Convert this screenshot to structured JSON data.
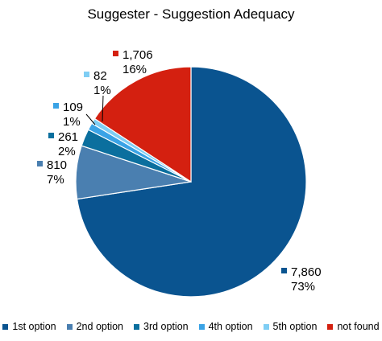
{
  "chart_data": {
    "type": "pie",
    "title": "Suggester - Suggestion Adequacy",
    "slices": [
      {
        "name": "1st option",
        "value": 7860,
        "value_label": "7,860",
        "percent_label": "73%",
        "color": "#0a5490"
      },
      {
        "name": "2nd option",
        "value": 810,
        "value_label": "810",
        "percent_label": "7%",
        "color": "#4a7fb0"
      },
      {
        "name": "3rd option",
        "value": 261,
        "value_label": "261",
        "percent_label": "2%",
        "color": "#0b6f9e"
      },
      {
        "name": "4th option",
        "value": 109,
        "value_label": "109",
        "percent_label": "1%",
        "color": "#3aa3e6"
      },
      {
        "name": "5th option",
        "value": 82,
        "value_label": "82",
        "percent_label": "1%",
        "color": "#7fcef4"
      },
      {
        "name": "not found",
        "value": 1706,
        "value_label": "1,706",
        "percent_label": "16%",
        "color": "#d42010"
      }
    ],
    "legend_position": "bottom"
  }
}
